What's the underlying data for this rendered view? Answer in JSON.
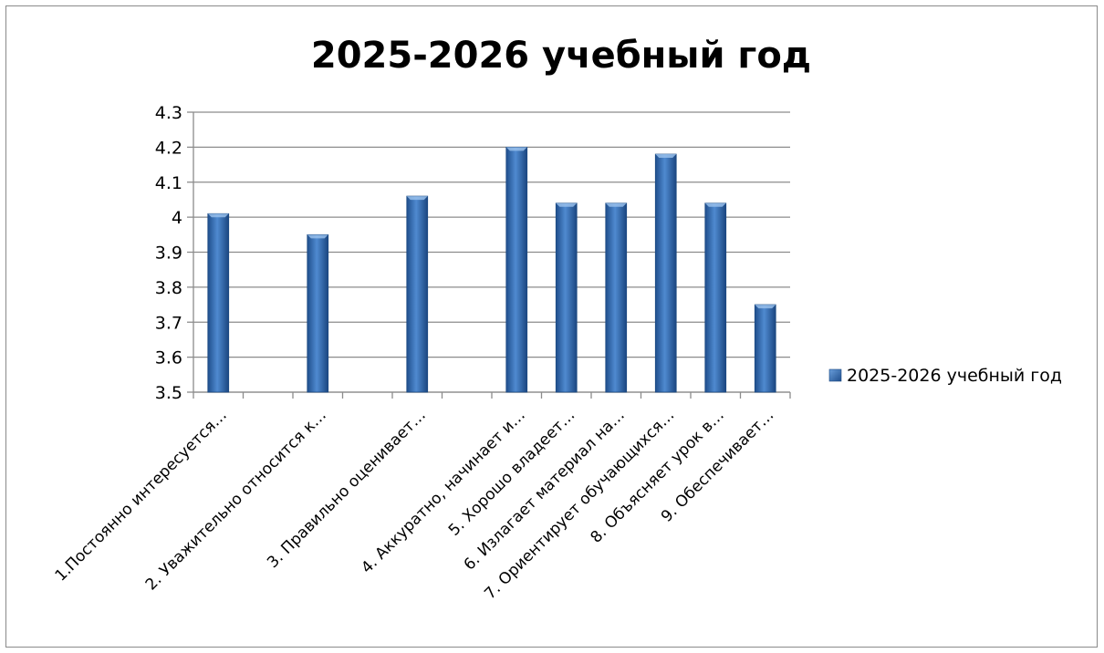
{
  "chart_data": {
    "type": "bar",
    "title": "2025-2026 учебный год",
    "categories": [
      "1.Постоянно интересуется…",
      "2. Уважительно относится к…",
      "3. Правильно оценивает…",
      "4. Аккуратно, начинает и…",
      "5. Хорошо владеет…",
      "6. Излагает материал на…",
      "7. Ориентирует обучающихся…",
      "8. Объясняет урок в…",
      "9. Обеспечивает…"
    ],
    "slots": [
      0,
      2,
      4,
      6,
      7,
      8,
      9,
      10,
      11
    ],
    "slot_count": 12,
    "series": [
      {
        "name": "2025-2026 учебный год",
        "values": [
          4.01,
          3.95,
          4.06,
          4.2,
          4.04,
          4.04,
          4.18,
          4.04,
          3.75
        ],
        "color": "#3a73b8"
      }
    ],
    "ylim": [
      3.5,
      4.3
    ],
    "yticks": [
      "3.5",
      "3.6",
      "3.7",
      "3.8",
      "3.9",
      "4",
      "4.1",
      "4.2",
      "4.3"
    ],
    "grid": true,
    "legend_position": "right"
  }
}
